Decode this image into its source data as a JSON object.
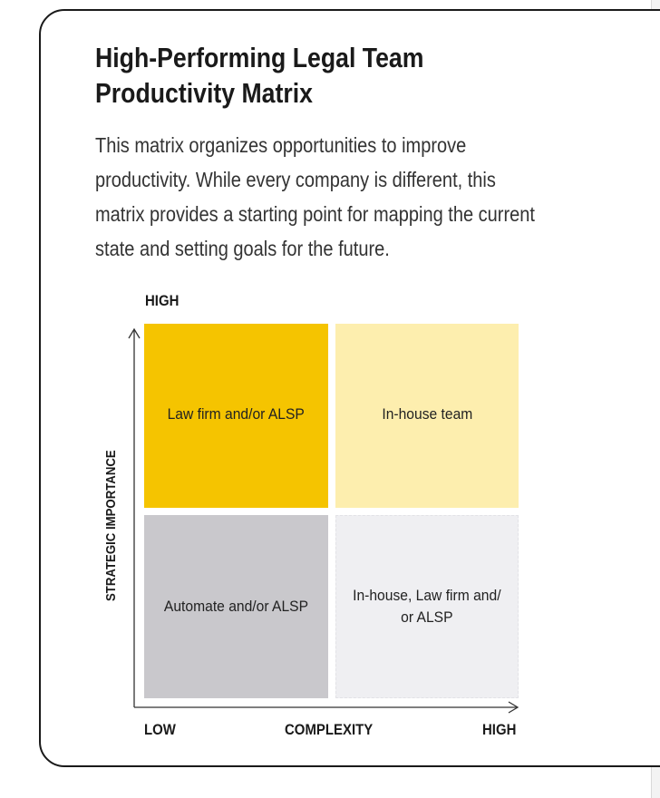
{
  "title": "High-Performing Legal Team Productivity Matrix",
  "description": "This matrix organizes opportunities to improve productivity. While every company is different, this matrix provides a starting point for mapping the current state and setting goals for the future.",
  "matrix": {
    "y_axis": {
      "label": "STRATEGIC IMPORTANCE",
      "high": "HIGH"
    },
    "x_axis": {
      "label": "COMPLEXITY",
      "low": "LOW",
      "high": "HIGH"
    },
    "quadrants": {
      "top_left": "Law firm and/or ALSP",
      "top_right": "In-house team",
      "bottom_left": "Automate and/or ALSP",
      "bottom_right_line1": "In-house, Law firm and/",
      "bottom_right_line2": "or ALSP"
    },
    "colors": {
      "top_left": "#f5c400",
      "top_right": "#fdeeae",
      "bottom_left": "#c9c8cc",
      "bottom_right": "#efeff2"
    }
  }
}
